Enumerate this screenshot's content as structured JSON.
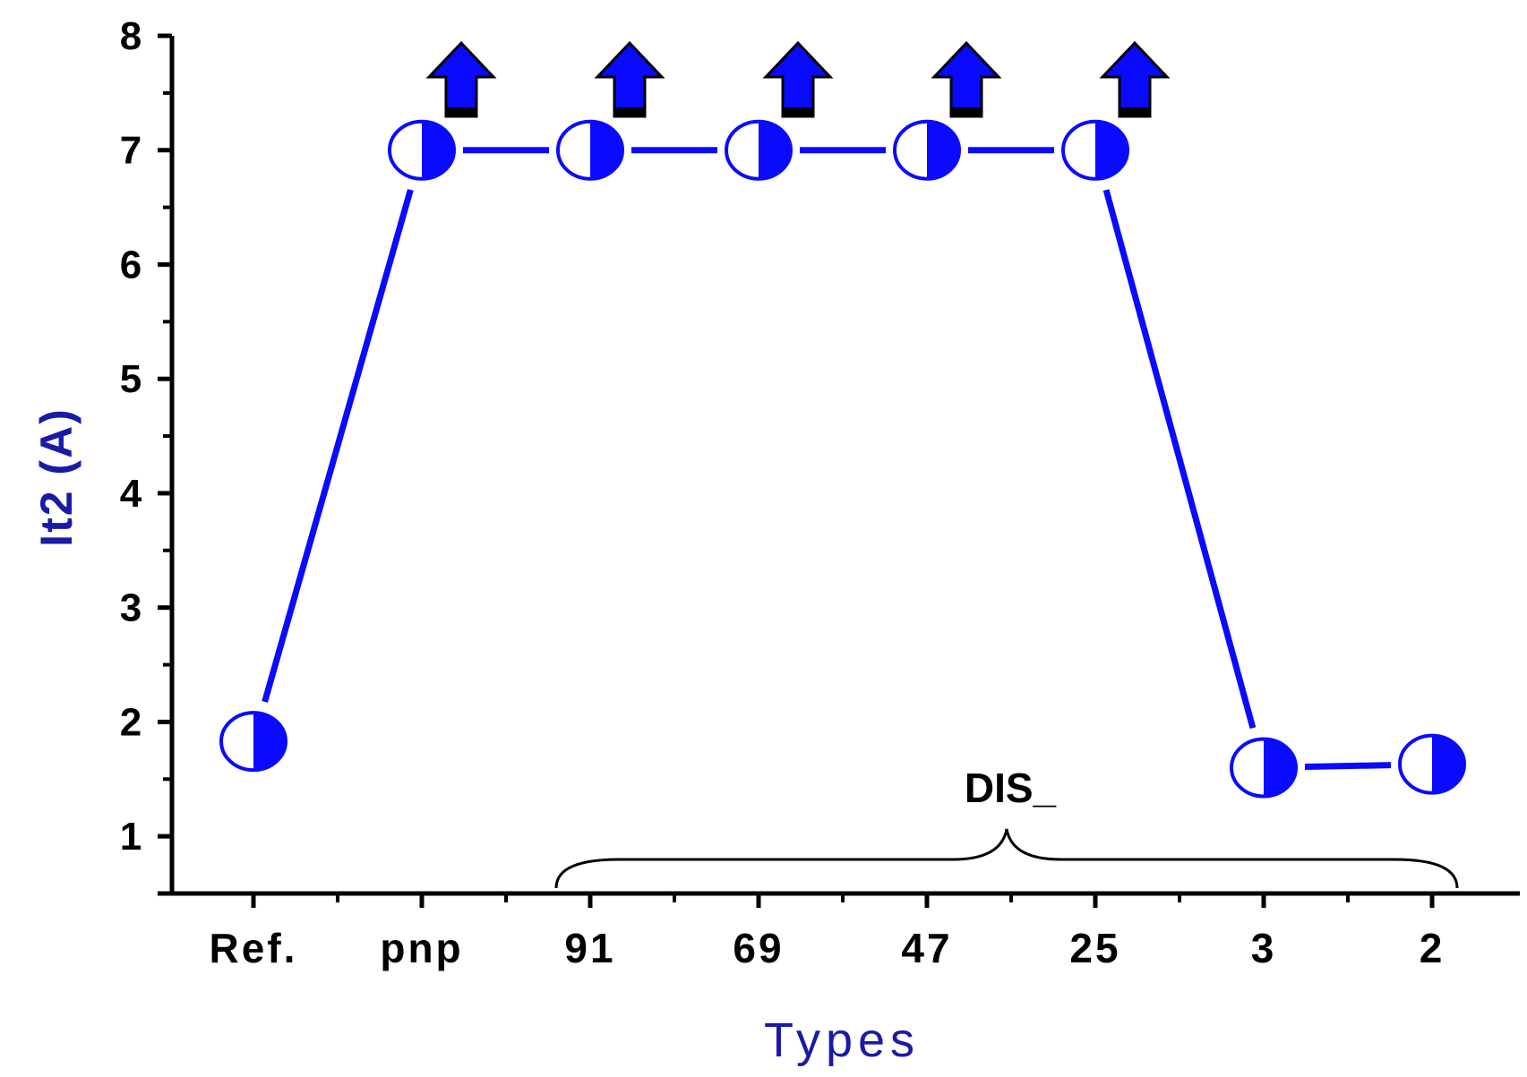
{
  "chart_data": {
    "type": "line",
    "categories": [
      "Ref.",
      "pnp",
      "91",
      "69",
      "47",
      "25",
      "3",
      "2"
    ],
    "series": [
      {
        "values": [
          1.83,
          7.0,
          7.0,
          7.0,
          7.0,
          7.0,
          1.6,
          1.63
        ]
      }
    ],
    "lower_bound_arrows": [
      "pnp",
      "91",
      "69",
      "47",
      "25"
    ],
    "xlabel": "Types",
    "ylabel": "It2 (A)",
    "ylim": [
      0.5,
      8
    ],
    "yticks": [
      1,
      2,
      3,
      4,
      5,
      6,
      7,
      8
    ],
    "grid": false,
    "annotations": [
      {
        "text": "DIS_",
        "spans": [
          "91",
          "25"
        ],
        "bracket": "curly-brace"
      }
    ],
    "colors": {
      "series": "#0a0aff",
      "axis_title": "#1a1aa6",
      "axis": "#000000",
      "arrow_fill": "#0a0aff",
      "arrow_stroke": "#000000"
    }
  }
}
